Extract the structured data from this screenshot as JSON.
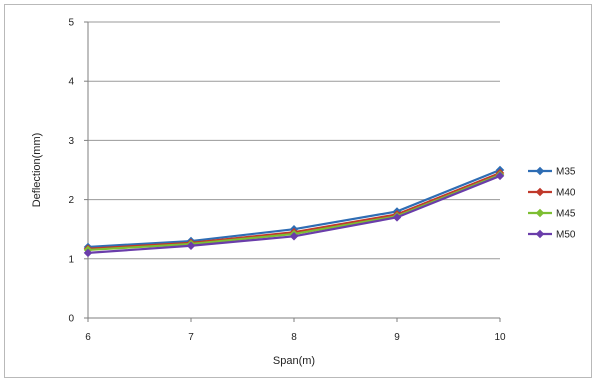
{
  "chart_data": {
    "type": "line",
    "xlabel": "Span(m)",
    "ylabel": "Deflection(mm)",
    "x": [
      6,
      7,
      8,
      9,
      10
    ],
    "xlim": [
      6,
      10
    ],
    "ylim": [
      0,
      5
    ],
    "y_ticks": [
      0,
      1,
      2,
      3,
      4,
      5
    ],
    "grid": true,
    "legend_position": "right",
    "series": [
      {
        "name": "M35",
        "color": "#2E6DB4",
        "values": [
          1.2,
          1.3,
          1.5,
          1.8,
          2.5
        ]
      },
      {
        "name": "M40",
        "color": "#C0392B",
        "values": [
          1.17,
          1.27,
          1.45,
          1.75,
          2.45
        ]
      },
      {
        "name": "M45",
        "color": "#7DBE32",
        "values": [
          1.15,
          1.25,
          1.42,
          1.72,
          2.42
        ]
      },
      {
        "name": "M50",
        "color": "#6A3DAA",
        "values": [
          1.1,
          1.22,
          1.38,
          1.7,
          2.4
        ]
      }
    ]
  }
}
